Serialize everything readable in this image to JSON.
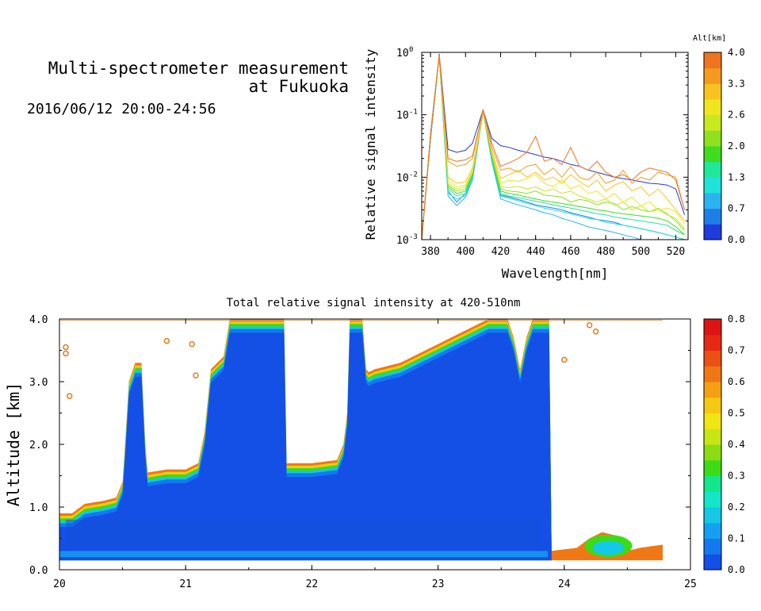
{
  "header": {
    "title_line1": "Multi-spectrometer measurement",
    "title_line2": "at Fukuoka",
    "datetime": "2016/06/12 20:00-24:56"
  },
  "chart_data": [
    {
      "type": "line",
      "title": "",
      "xlabel": "Wavelength[nm]",
      "ylabel": "Relative signal intensity",
      "xlim": [
        375,
        527
      ],
      "ylim": [
        0.001,
        1
      ],
      "yscale": "log",
      "x_ticks": [
        "380",
        "400",
        "420",
        "440",
        "460",
        "480",
        "500",
        "520"
      ],
      "y_ticks": [
        "10",
        "10",
        "10",
        "10"
      ],
      "y_tick_exponents": [
        "-3",
        "-2",
        "-1",
        "0"
      ],
      "colorbar": {
        "label": "Alt[km]",
        "ticks": [
          "0.0",
          "0.7",
          "1.3",
          "2.0",
          "2.6",
          "3.3",
          "4.0"
        ],
        "colors": [
          "#1f3bdc",
          "#1f7fe8",
          "#2ab3f0",
          "#1fe2d8",
          "#1fe89a",
          "#3fdc1f",
          "#8fe01f",
          "#c8e81f",
          "#f0e61f",
          "#f7c41f",
          "#f59a1f",
          "#f0741f"
        ]
      },
      "x": [
        375,
        380,
        385,
        390,
        395,
        400,
        404,
        410,
        415,
        420,
        425,
        430,
        435,
        440,
        445,
        450,
        455,
        460,
        465,
        470,
        475,
        480,
        485,
        490,
        495,
        500,
        505,
        510,
        515,
        520,
        525
      ],
      "series": [
        {
          "color": "#1f3bdc",
          "values": [
            0.001,
            0.05,
            0.95,
            0.028,
            0.025,
            0.027,
            0.035,
            0.12,
            0.042,
            0.032,
            0.03,
            0.027,
            0.025,
            0.023,
            0.021,
            0.02,
            0.018,
            0.016,
            0.015,
            0.013,
            0.012,
            0.011,
            0.01,
            0.0095,
            0.009,
            0.0085,
            0.008,
            0.0078,
            0.0075,
            0.0065,
            0.0025
          ]
        },
        {
          "color": "#1f7fe8",
          "values": [
            0.001,
            0.04,
            0.9,
            0.006,
            0.004,
            0.0055,
            0.01,
            0.115,
            0.02,
            0.0052,
            0.0048,
            0.0044,
            0.004,
            0.0036,
            0.0034,
            0.0032,
            0.003,
            0.0027,
            0.0025,
            0.0023,
            0.0021,
            0.002,
            0.0019,
            0.0017,
            0.0016,
            0.0015,
            0.0014,
            0.0013,
            0.0012,
            0.0011,
            0.001
          ]
        },
        {
          "color": "#2ab3f0",
          "values": [
            0.001,
            0.04,
            0.85,
            0.005,
            0.0035,
            0.0048,
            0.009,
            0.11,
            0.018,
            0.0045,
            0.004,
            0.0036,
            0.0033,
            0.003,
            0.0027,
            0.0025,
            0.0022,
            0.002,
            0.0018,
            0.0016,
            0.0015,
            0.0014,
            0.0013,
            0.0012,
            0.0011,
            0.001,
            0.001,
            0.001,
            0.001,
            0.001,
            0.001
          ]
        },
        {
          "color": "#1fe2d8",
          "values": [
            0.001,
            0.045,
            0.9,
            0.0055,
            0.0045,
            0.005,
            0.01,
            0.11,
            0.02,
            0.005,
            0.0046,
            0.0042,
            0.0038,
            0.0035,
            0.0032,
            0.003,
            0.0028,
            0.0026,
            0.0024,
            0.0022,
            0.0021,
            0.0019,
            0.0018,
            0.0017,
            0.0016,
            0.0015,
            0.0014,
            0.0013,
            0.0012,
            0.0011,
            0.001
          ]
        },
        {
          "color": "#1fe89a",
          "values": [
            0.001,
            0.045,
            0.9,
            0.0065,
            0.005,
            0.0055,
            0.011,
            0.11,
            0.021,
            0.0055,
            0.005,
            0.0047,
            0.0044,
            0.0041,
            0.0039,
            0.0036,
            0.0034,
            0.0032,
            0.003,
            0.0028,
            0.0026,
            0.0025,
            0.0023,
            0.0022,
            0.0021,
            0.002,
            0.0019,
            0.0018,
            0.0017,
            0.0014,
            0.0012
          ]
        },
        {
          "color": "#3fdc1f",
          "values": [
            0.001,
            0.045,
            0.9,
            0.007,
            0.0055,
            0.006,
            0.011,
            0.11,
            0.022,
            0.006,
            0.0055,
            0.0052,
            0.0048,
            0.0045,
            0.0042,
            0.004,
            0.0038,
            0.0036,
            0.0034,
            0.0032,
            0.003,
            0.0029,
            0.0027,
            0.0026,
            0.0025,
            0.0024,
            0.0023,
            0.0022,
            0.002,
            0.0016,
            0.0012
          ]
        },
        {
          "color": "#8fe01f",
          "values": [
            0.001,
            0.045,
            0.9,
            0.0075,
            0.006,
            0.0065,
            0.012,
            0.11,
            0.023,
            0.0065,
            0.006,
            0.0058,
            0.0055,
            0.006,
            0.0052,
            0.005,
            0.0048,
            0.004,
            0.0044,
            0.0042,
            0.0036,
            0.004,
            0.0038,
            0.003,
            0.0034,
            0.003,
            0.0028,
            0.0032,
            0.0026,
            0.002,
            0.0014
          ]
        },
        {
          "color": "#c8e81f",
          "values": [
            0.001,
            0.045,
            0.9,
            0.008,
            0.0065,
            0.007,
            0.012,
            0.11,
            0.024,
            0.007,
            0.0068,
            0.0072,
            0.0065,
            0.007,
            0.006,
            0.0065,
            0.0055,
            0.006,
            0.005,
            0.0045,
            0.004,
            0.0045,
            0.0035,
            0.004,
            0.003,
            0.0035,
            0.0028,
            0.003,
            0.0025,
            0.0022,
            0.0015
          ]
        },
        {
          "color": "#f0e61f",
          "values": [
            0.001,
            0.045,
            0.9,
            0.009,
            0.007,
            0.0075,
            0.013,
            0.11,
            0.025,
            0.008,
            0.009,
            0.0085,
            0.0095,
            0.011,
            0.008,
            0.007,
            0.009,
            0.0065,
            0.0075,
            0.0055,
            0.006,
            0.0045,
            0.0055,
            0.004,
            0.0048,
            0.0035,
            0.004,
            0.003,
            0.0032,
            0.0028,
            0.0018
          ]
        },
        {
          "color": "#f7c41f",
          "values": [
            0.001,
            0.045,
            0.9,
            0.01,
            0.008,
            0.0085,
            0.014,
            0.11,
            0.026,
            0.0095,
            0.011,
            0.013,
            0.01,
            0.012,
            0.009,
            0.01,
            0.008,
            0.011,
            0.0085,
            0.007,
            0.009,
            0.006,
            0.0075,
            0.0085,
            0.006,
            0.007,
            0.005,
            0.0065,
            0.0045,
            0.003,
            0.002
          ]
        },
        {
          "color": "#f59a1f",
          "values": [
            0.001,
            0.045,
            0.9,
            0.018,
            0.015,
            0.016,
            0.02,
            0.12,
            0.03,
            0.013,
            0.014,
            0.012,
            0.015,
            0.016,
            0.011,
            0.014,
            0.01,
            0.015,
            0.01,
            0.009,
            0.012,
            0.008,
            0.009,
            0.013,
            0.008,
            0.01,
            0.009,
            0.012,
            0.011,
            0.01,
            0.003
          ]
        },
        {
          "color": "#f0741f",
          "values": [
            0.001,
            0.045,
            0.9,
            0.02,
            0.018,
            0.019,
            0.022,
            0.12,
            0.035,
            0.015,
            0.017,
            0.02,
            0.025,
            0.045,
            0.018,
            0.02,
            0.016,
            0.03,
            0.015,
            0.013,
            0.018,
            0.012,
            0.01,
            0.011,
            0.009,
            0.012,
            0.014,
            0.013,
            0.012,
            0.009,
            0.003
          ]
        }
      ]
    },
    {
      "type": "heatmap",
      "title": "Total relative signal intensity at 420-510nm",
      "xlabel": "",
      "ylabel": "Altitude [km]",
      "xlim": [
        20,
        25
      ],
      "ylim": [
        0,
        4
      ],
      "x_ticks": [
        "20",
        "21",
        "22",
        "23",
        "24",
        "25"
      ],
      "y_ticks": [
        "0.0",
        "1.0",
        "2.0",
        "3.0",
        "4.0"
      ],
      "colorbar": {
        "ticks": [
          "0.0",
          "0.1",
          "0.2",
          "0.3",
          "0.4",
          "0.5",
          "0.6",
          "0.7",
          "0.8"
        ],
        "range": [
          0,
          0.8
        ],
        "colors": [
          "#1450e6",
          "#1478f0",
          "#14a0f0",
          "#14c8e6",
          "#14e6c8",
          "#14e68c",
          "#3cdc14",
          "#8cdc14",
          "#c8e614",
          "#f0e614",
          "#f5c814",
          "#f5a014",
          "#f07814",
          "#eb5014",
          "#e62814",
          "#dc1414"
        ]
      },
      "cloud_top_profile": {
        "time": [
          20.0,
          20.1,
          20.2,
          20.35,
          20.45,
          20.5,
          20.52,
          20.55,
          20.6,
          20.65,
          20.68,
          20.7,
          20.85,
          21.0,
          21.1,
          21.15,
          21.2,
          21.3,
          21.35,
          21.4,
          21.6,
          21.78,
          21.8,
          21.82,
          22.0,
          22.2,
          22.25,
          22.28,
          22.3,
          22.35,
          22.4,
          22.43,
          22.45,
          22.5,
          22.7,
          22.9,
          23.0,
          23.2,
          23.4,
          23.55,
          23.6,
          23.65,
          23.7,
          23.75,
          23.8,
          23.88,
          23.9
        ],
        "altitude_km": [
          0.9,
          0.9,
          1.05,
          1.1,
          1.15,
          1.4,
          2.0,
          3.0,
          3.3,
          3.3,
          2.0,
          1.55,
          1.6,
          1.6,
          1.7,
          2.2,
          3.2,
          3.4,
          4.0,
          4.0,
          4.0,
          4.0,
          1.7,
          1.7,
          1.7,
          1.75,
          2.0,
          2.5,
          4.0,
          4.0,
          4.0,
          3.2,
          3.15,
          3.2,
          3.3,
          3.5,
          3.6,
          3.8,
          4.0,
          4.0,
          3.7,
          3.2,
          3.7,
          4.0,
          4.0,
          4.0,
          0.2
        ]
      },
      "low_layer_after_24h": {
        "time": [
          23.9,
          24.1,
          24.2,
          24.3,
          24.4,
          24.5,
          24.6,
          24.78
        ],
        "altitude_km": [
          0.3,
          0.35,
          0.5,
          0.6,
          0.55,
          0.3,
          0.35,
          0.4
        ]
      }
    }
  ]
}
